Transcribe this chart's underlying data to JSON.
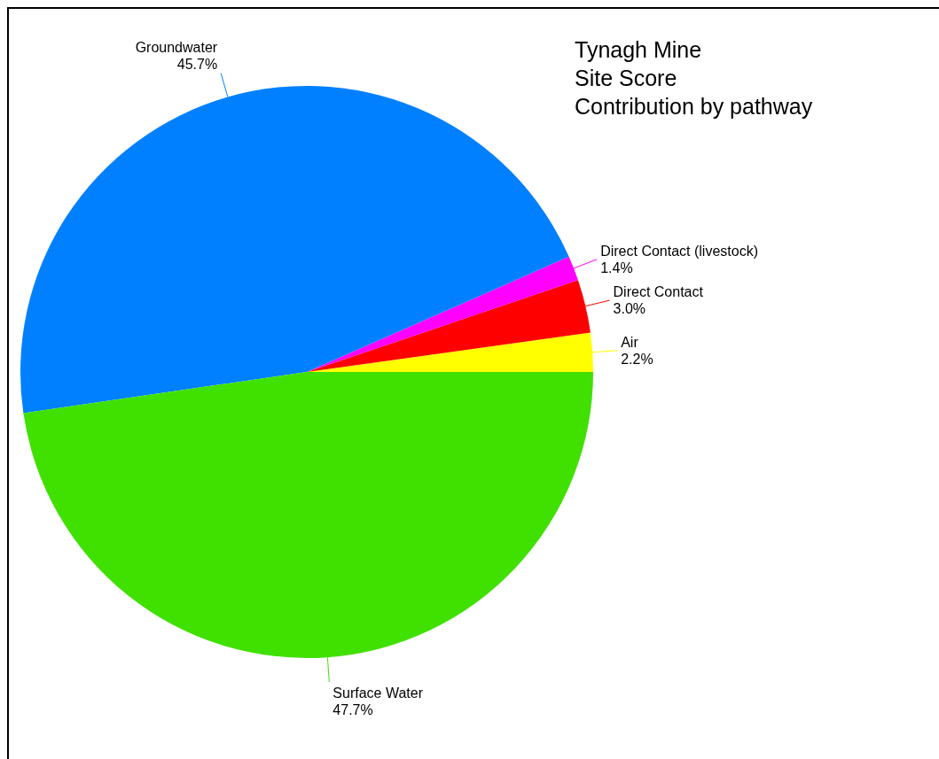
{
  "chart_data": {
    "type": "pie",
    "title": "Tynagh Mine\nSite Score\nContribution by pathway",
    "categories": [
      "Air",
      "Direct Contact",
      "Direct Contact (livestock)",
      "Groundwater",
      "Surface Water"
    ],
    "values": [
      2.2,
      3.0,
      1.4,
      45.7,
      47.7
    ],
    "colors": [
      "#ffff00",
      "#ff0000",
      "#ff00ff",
      "#0080ff",
      "#40e000"
    ],
    "value_labels": [
      "2.2%",
      "3.0%",
      "1.4%",
      "45.7%",
      "47.7%"
    ]
  }
}
